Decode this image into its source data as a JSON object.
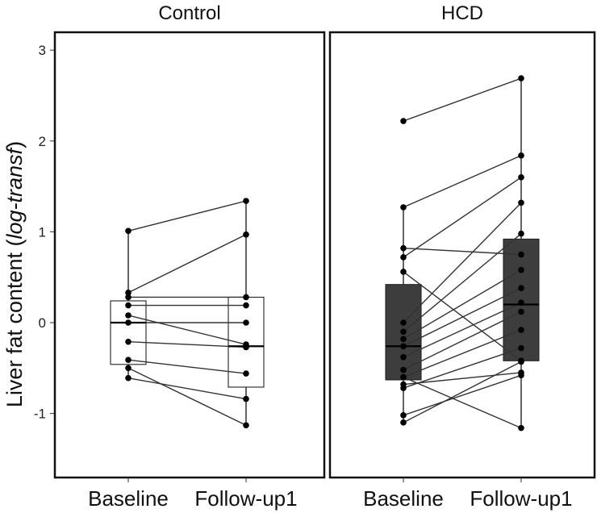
{
  "chart_data": {
    "type": "boxplot",
    "ylabel_main": "Liver fat content (",
    "ylabel_italic": "log-transf",
    "ylabel_close": ")",
    "ylim": [
      -1.7,
      3.2
    ],
    "yticks": [
      3,
      2,
      1,
      0,
      -1
    ],
    "ytick_labels": [
      "3",
      "2",
      "1",
      "0",
      "-1"
    ],
    "categories": [
      "Baseline",
      "Follow-up1"
    ],
    "panels": [
      {
        "title": "Control",
        "box_color": "#ffffff",
        "boxes": [
          {
            "whisker_low": -0.63,
            "q1": -0.46,
            "median": 0.0,
            "q3": 0.24,
            "whisker_high": 1.01
          },
          {
            "whisker_low": -1.14,
            "q1": -0.71,
            "median": -0.26,
            "q3": 0.28,
            "whisker_high": 1.34
          }
        ],
        "pairs": [
          [
            1.01,
            1.34
          ],
          [
            0.33,
            0.97
          ],
          [
            0.28,
            0.28
          ],
          [
            0.19,
            0.19
          ],
          [
            0.08,
            -0.24
          ],
          [
            -0.21,
            -0.27
          ],
          [
            -0.41,
            -0.56
          ],
          [
            -0.5,
            -1.13
          ],
          [
            -0.61,
            -0.84
          ],
          [
            0.0,
            0.0
          ]
        ]
      },
      {
        "title": "HCD",
        "box_color": "#3d3d3d",
        "boxes": [
          {
            "whisker_low": -1.1,
            "q1": -0.63,
            "median": -0.26,
            "q3": 0.42,
            "whisker_high": 1.27
          },
          {
            "whisker_low": -1.16,
            "q1": -0.42,
            "median": 0.2,
            "q3": 0.92,
            "whisker_high": 2.69
          }
        ],
        "pairs": [
          [
            2.22,
            2.69
          ],
          [
            1.27,
            1.84
          ],
          [
            0.82,
            0.75
          ],
          [
            0.72,
            1.6
          ],
          [
            0.56,
            -0.42
          ],
          [
            0.0,
            1.32
          ],
          [
            -0.1,
            0.98
          ],
          [
            -0.18,
            0.58
          ],
          [
            -0.26,
            0.38
          ],
          [
            -0.38,
            0.22
          ],
          [
            -0.52,
            0.12
          ],
          [
            -0.6,
            -0.08
          ],
          [
            -0.68,
            -0.55
          ],
          [
            -0.72,
            -0.28
          ],
          [
            -1.02,
            -0.58
          ],
          [
            -1.1,
            -0.43
          ],
          [
            -0.6,
            -1.16
          ]
        ]
      }
    ]
  }
}
